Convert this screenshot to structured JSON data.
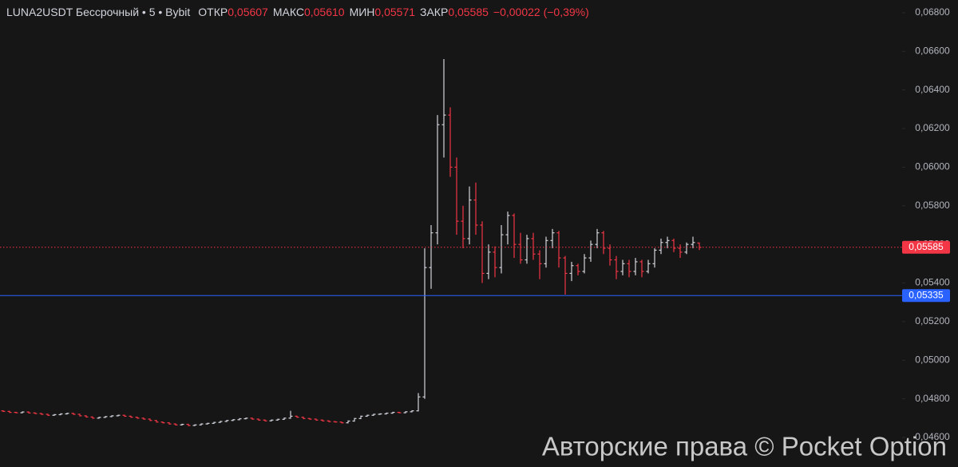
{
  "chart_data": {
    "type": "ohlc",
    "legend": {
      "symbol": "LUNA2USDT Бессрочный • 5 • Bybit",
      "fields": [
        {
          "label": "ОТКР",
          "value": "0,05607"
        },
        {
          "label": "МАКС",
          "value": "0,05610"
        },
        {
          "label": "МИН",
          "value": "0,05571"
        },
        {
          "label": "ЗАКР",
          "value": "0,05585"
        }
      ],
      "change": "−0,00022 (−0,39%)"
    },
    "up_color": "#d1d4dc",
    "down_color": "#f23645",
    "ylim": [
      0.04447,
      0.06866
    ],
    "yticks": [
      {
        "value": 0.068,
        "label": "0,06800"
      },
      {
        "value": 0.066,
        "label": "0,06600"
      },
      {
        "value": 0.064,
        "label": "0,06400"
      },
      {
        "value": 0.062,
        "label": "0,06200"
      },
      {
        "value": 0.06,
        "label": "0,06000"
      },
      {
        "value": 0.058,
        "label": "0,05800"
      },
      {
        "value": 0.056,
        "label": "0,05600"
      },
      {
        "value": 0.054,
        "label": "0,05400"
      },
      {
        "value": 0.052,
        "label": "0,05200"
      },
      {
        "value": 0.05,
        "label": "0,05000"
      },
      {
        "value": 0.048,
        "label": "0,04800"
      },
      {
        "value": 0.046,
        "label": "0,04600"
      }
    ],
    "price_lines": [
      {
        "value": 0.05585,
        "label": "0,05585",
        "color": "#f23645",
        "style": "dotted"
      },
      {
        "value": 0.05335,
        "label": "0,05335",
        "color": "#2962ff",
        "style": "solid"
      }
    ],
    "open": [
      0.04738,
      0.04735,
      0.0473,
      0.04728,
      0.04732,
      0.04727,
      0.04724,
      0.0472,
      0.04715,
      0.04718,
      0.04722,
      0.04725,
      0.0472,
      0.04712,
      0.04706,
      0.047,
      0.04704,
      0.04708,
      0.04712,
      0.04715,
      0.0471,
      0.04705,
      0.047,
      0.04695,
      0.04688,
      0.0468,
      0.04676,
      0.0467,
      0.04665,
      0.04668,
      0.04662,
      0.04665,
      0.0467,
      0.04673,
      0.04678,
      0.04683,
      0.04688,
      0.04692,
      0.04697,
      0.047,
      0.04695,
      0.0469,
      0.04686,
      0.0469,
      0.04694,
      0.047,
      0.0471,
      0.04705,
      0.04698,
      0.04695,
      0.0469,
      0.04686,
      0.04682,
      0.0468,
      0.04676,
      0.04685,
      0.04698,
      0.0471,
      0.04715,
      0.0472,
      0.04722,
      0.04726,
      0.0473,
      0.04728,
      0.04733,
      0.04738,
      0.0481,
      0.0548,
      0.0566,
      0.0622,
      0.0627,
      0.06,
      0.0572,
      0.0563,
      0.0583,
      0.057,
      0.0545,
      0.0556,
      0.0548,
      0.0565,
      0.0575,
      0.056,
      0.0552,
      0.0563,
      0.0555,
      0.055,
      0.0562,
      0.0566,
      0.0553,
      0.0545,
      0.0549,
      0.0546,
      0.0553,
      0.056,
      0.0566,
      0.0558,
      0.0552,
      0.0546,
      0.055,
      0.0546,
      0.0551,
      0.0546,
      0.055,
      0.0557,
      0.0561,
      0.0562,
      0.0558,
      0.0556,
      0.056,
      0.05607
    ],
    "high": [
      0.04741,
      0.04738,
      0.04733,
      0.04735,
      0.04735,
      0.0473,
      0.04727,
      0.04723,
      0.04721,
      0.04725,
      0.04728,
      0.04728,
      0.04723,
      0.04715,
      0.04709,
      0.04707,
      0.04711,
      0.04715,
      0.04718,
      0.04718,
      0.04713,
      0.04708,
      0.04703,
      0.04698,
      0.04691,
      0.04683,
      0.04679,
      0.04673,
      0.04671,
      0.04671,
      0.04668,
      0.04673,
      0.04676,
      0.04681,
      0.04686,
      0.04691,
      0.04695,
      0.047,
      0.04703,
      0.04703,
      0.04698,
      0.04693,
      0.04693,
      0.04697,
      0.04703,
      0.04738,
      0.04713,
      0.04708,
      0.04701,
      0.04698,
      0.04693,
      0.04689,
      0.04685,
      0.04683,
      0.04688,
      0.04701,
      0.04713,
      0.04718,
      0.04723,
      0.04725,
      0.04729,
      0.04733,
      0.04733,
      0.04736,
      0.04741,
      0.0483,
      0.0558,
      0.057,
      0.0627,
      0.0656,
      0.0631,
      0.0605,
      0.058,
      0.059,
      0.0592,
      0.0572,
      0.056,
      0.0559,
      0.057,
      0.0577,
      0.0576,
      0.0566,
      0.0565,
      0.0566,
      0.0557,
      0.0564,
      0.0568,
      0.0567,
      0.0554,
      0.0551,
      0.055,
      0.0555,
      0.0562,
      0.0568,
      0.0567,
      0.056,
      0.0554,
      0.0552,
      0.0552,
      0.0553,
      0.0552,
      0.0552,
      0.0558,
      0.0563,
      0.0564,
      0.0563,
      0.056,
      0.0561,
      0.0564,
      0.0561
    ],
    "low": [
      0.04732,
      0.04727,
      0.04725,
      0.04725,
      0.04724,
      0.04721,
      0.04717,
      0.04712,
      0.04712,
      0.04715,
      0.04719,
      0.04717,
      0.04709,
      0.04703,
      0.04697,
      0.04697,
      0.04701,
      0.04705,
      0.04709,
      0.04707,
      0.04702,
      0.04697,
      0.04692,
      0.04685,
      0.04677,
      0.04673,
      0.04667,
      0.04662,
      0.04662,
      0.04659,
      0.04659,
      0.04662,
      0.04667,
      0.0467,
      0.04675,
      0.0468,
      0.04685,
      0.04689,
      0.04694,
      0.04692,
      0.04687,
      0.04683,
      0.04683,
      0.04687,
      0.04691,
      0.04697,
      0.04702,
      0.04695,
      0.04692,
      0.04687,
      0.04683,
      0.04679,
      0.04677,
      0.04673,
      0.04673,
      0.04682,
      0.04695,
      0.04707,
      0.04712,
      0.04717,
      0.04719,
      0.04723,
      0.04725,
      0.04725,
      0.0473,
      0.04735,
      0.048,
      0.0537,
      0.056,
      0.0605,
      0.0595,
      0.0565,
      0.0558,
      0.056,
      0.0565,
      0.054,
      0.0542,
      0.0543,
      0.0545,
      0.056,
      0.0553,
      0.055,
      0.055,
      0.0552,
      0.0542,
      0.0548,
      0.0558,
      0.0548,
      0.0534,
      0.0541,
      0.0544,
      0.0545,
      0.0551,
      0.0558,
      0.0555,
      0.0549,
      0.0542,
      0.0544,
      0.0543,
      0.0544,
      0.0543,
      0.0545,
      0.0548,
      0.0555,
      0.0558,
      0.0556,
      0.0553,
      0.0555,
      0.0558,
      0.05571
    ],
    "close": [
      0.04735,
      0.0473,
      0.04728,
      0.04732,
      0.04727,
      0.04724,
      0.0472,
      0.04715,
      0.04718,
      0.04722,
      0.04725,
      0.0472,
      0.04712,
      0.04706,
      0.047,
      0.04704,
      0.04708,
      0.04712,
      0.04715,
      0.0471,
      0.04705,
      0.047,
      0.04695,
      0.04688,
      0.0468,
      0.04676,
      0.0467,
      0.04665,
      0.04668,
      0.04662,
      0.04665,
      0.0467,
      0.04673,
      0.04678,
      0.04683,
      0.04688,
      0.04692,
      0.04697,
      0.047,
      0.04695,
      0.0469,
      0.04686,
      0.0469,
      0.04694,
      0.047,
      0.0471,
      0.04705,
      0.04698,
      0.04695,
      0.0469,
      0.04686,
      0.04682,
      0.0468,
      0.04676,
      0.04685,
      0.04698,
      0.0471,
      0.04715,
      0.0472,
      0.04722,
      0.04726,
      0.0473,
      0.04728,
      0.04733,
      0.04738,
      0.0481,
      0.0548,
      0.0566,
      0.0622,
      0.0627,
      0.06,
      0.0572,
      0.0563,
      0.0583,
      0.057,
      0.0545,
      0.0556,
      0.0548,
      0.0565,
      0.0575,
      0.056,
      0.0552,
      0.0563,
      0.0555,
      0.055,
      0.0562,
      0.0566,
      0.0553,
      0.0545,
      0.0549,
      0.0546,
      0.0553,
      0.056,
      0.0566,
      0.0558,
      0.0552,
      0.0546,
      0.055,
      0.0546,
      0.0551,
      0.0546,
      0.055,
      0.0557,
      0.0561,
      0.0562,
      0.0558,
      0.0556,
      0.056,
      0.0561,
      0.05585
    ]
  },
  "watermark": "Авторские права © Pocket Option"
}
